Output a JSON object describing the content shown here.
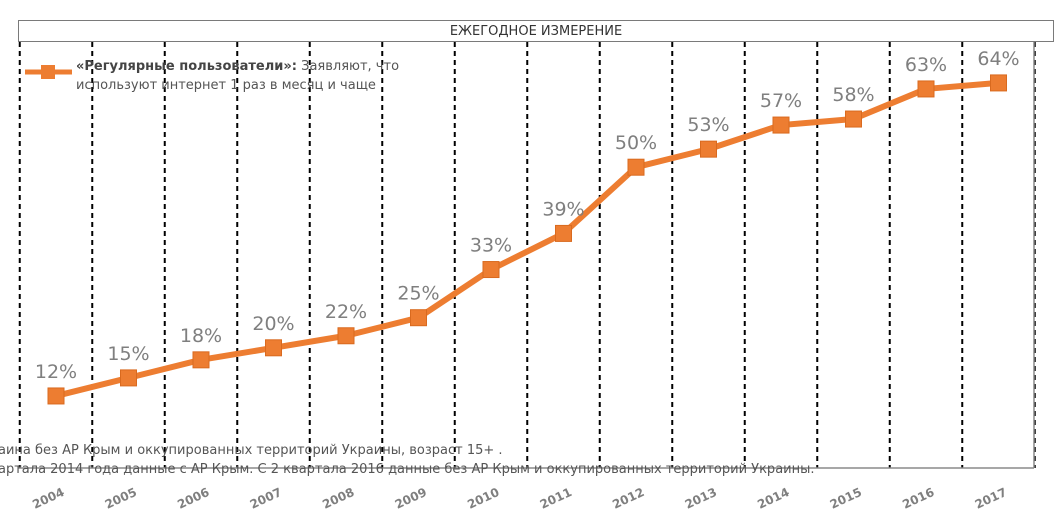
{
  "header": {
    "title": "ЕЖЕГОДНОЕ ИЗМЕРЕНИЕ"
  },
  "legend": {
    "bold": "«Регулярные пользователи»:",
    "rest": " Заявляют, что используют интернет 1 раз в месяц и чаще"
  },
  "footnotes": [
    "аина без АР Крым и оккупированных территорий Украины, возраст 15+ .",
    "артала 2014 года данные с АР Крым. С 2 квартала 2016 данные без АР Крым и оккупированных территорий Украины."
  ],
  "colors": {
    "line": "#ED7D31",
    "marker": "#ED7D31",
    "label": "#7f7f7f"
  },
  "chart_data": {
    "type": "line",
    "title": "ЕЖЕГОДНОЕ ИЗМЕРЕНИЕ",
    "categories": [
      "2004",
      "2005",
      "2006",
      "2007",
      "2008",
      "2009",
      "2010",
      "2011",
      "2012",
      "2013",
      "2014",
      "2015",
      "2016",
      "2017"
    ],
    "series": [
      {
        "name": "«Регулярные пользователи»",
        "values": [
          12,
          15,
          18,
          20,
          22,
          25,
          33,
          39,
          50,
          53,
          57,
          58,
          63,
          64
        ],
        "labels": [
          "12%",
          "15%",
          "18%",
          "20%",
          "22%",
          "25%",
          "33%",
          "39%",
          "50%",
          "53%",
          "57%",
          "58%",
          "63%",
          "64%"
        ]
      }
    ],
    "xlabel": "",
    "ylabel": "",
    "ylim": [
      0,
      75
    ],
    "grid": "vertical dashed lines between years",
    "legend_position": "top-left"
  }
}
